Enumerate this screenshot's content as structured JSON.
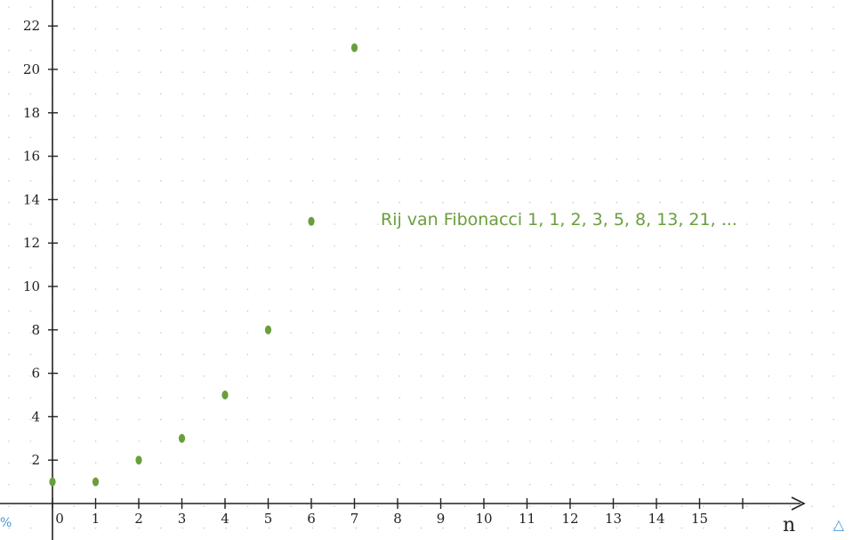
{
  "chart_data": {
    "type": "scatter",
    "title": "Rij van Fibonacci 1, 1, 2, 3, 5, 8, 13, 21, ...",
    "xlabel": "n",
    "ylabel": "",
    "x": [
      0,
      1,
      2,
      3,
      4,
      5,
      6,
      7
    ],
    "y": [
      1,
      1,
      2,
      3,
      5,
      8,
      13,
      21
    ],
    "xlim": [
      0,
      17
    ],
    "ylim": [
      0,
      23
    ],
    "xticks": [
      0,
      1,
      2,
      3,
      4,
      5,
      6,
      7,
      8,
      9,
      10,
      11,
      12,
      13,
      14,
      15
    ],
    "yticks": [
      2,
      4,
      6,
      8,
      10,
      12,
      14,
      16,
      18,
      20,
      22
    ],
    "grid": "dotted",
    "point_color": "#6a9e3c"
  },
  "ui": {
    "zoom_fragment": "%",
    "share_icon": "share-icon"
  }
}
